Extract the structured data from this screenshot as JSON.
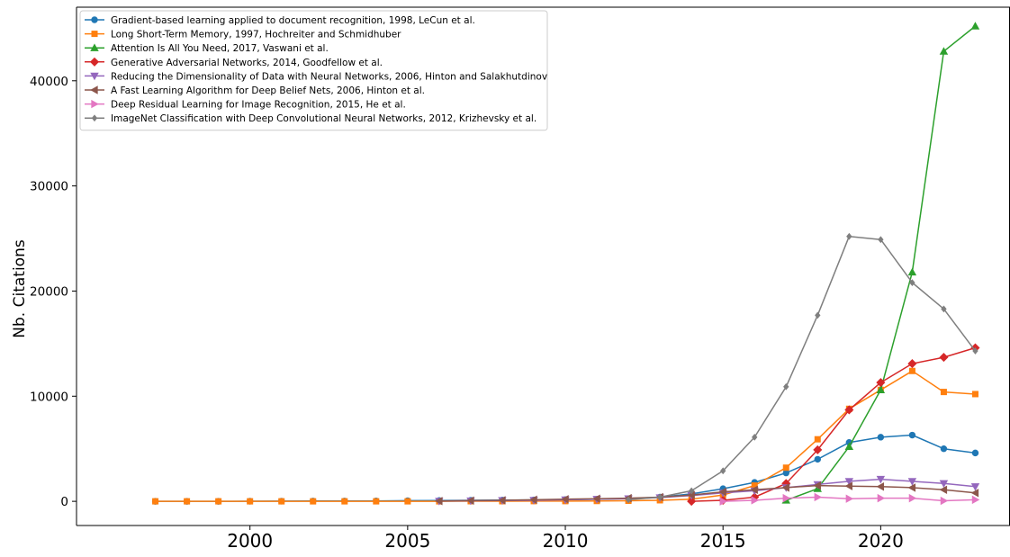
{
  "chart_data": {
    "type": "line",
    "title": "",
    "xlabel": "",
    "ylabel": "Nb. Citations",
    "xlim": [
      1994.5,
      2024.1
    ],
    "ylim": [
      -2300,
      47000
    ],
    "xticks": [
      2000,
      2005,
      2010,
      2015,
      2020
    ],
    "yticks": [
      0,
      10000,
      20000,
      30000,
      40000
    ],
    "grid": false,
    "legend_position": "top-left",
    "series": [
      {
        "name": "Gradient-based learning applied to document recognition, 1998, LeCun et al.",
        "color": "#1f77b4",
        "marker": "circle",
        "x": [
          1997,
          1998,
          1999,
          2000,
          2001,
          2002,
          2003,
          2004,
          2005,
          2006,
          2007,
          2008,
          2009,
          2010,
          2011,
          2012,
          2013,
          2014,
          2015,
          2016,
          2017,
          2018,
          2019,
          2020,
          2021,
          2022,
          2023
        ],
        "y": [
          0,
          0,
          0,
          10,
          20,
          30,
          30,
          40,
          60,
          80,
          100,
          120,
          130,
          160,
          200,
          260,
          400,
          700,
          1200,
          1800,
          2700,
          4000,
          5600,
          6100,
          6300,
          5000,
          4600
        ]
      },
      {
        "name": "Long Short-Term Memory, 1997, Hochreiter and Schmidhuber",
        "color": "#ff7f0e",
        "marker": "square",
        "x": [
          1997,
          1998,
          1999,
          2000,
          2001,
          2002,
          2003,
          2004,
          2005,
          2006,
          2007,
          2008,
          2009,
          2010,
          2011,
          2012,
          2013,
          2014,
          2015,
          2016,
          2017,
          2018,
          2019,
          2020,
          2021,
          2022,
          2023
        ],
        "y": [
          0,
          0,
          0,
          0,
          0,
          0,
          0,
          0,
          0,
          0,
          10,
          10,
          20,
          20,
          30,
          50,
          100,
          200,
          600,
          1500,
          3200,
          5900,
          8800,
          10600,
          12400,
          10400,
          10200
        ]
      },
      {
        "name": "Attention Is All You Need, 2017, Vaswani et al.",
        "color": "#2ca02c",
        "marker": "triangle-up",
        "x": [
          2017,
          2018,
          2019,
          2020,
          2021,
          2022,
          2023
        ],
        "y": [
          100,
          1200,
          5200,
          10600,
          21800,
          42800,
          45200
        ]
      },
      {
        "name": "Generative Adversarial Networks, 2014, Goodfellow et al.",
        "color": "#d62728",
        "marker": "diamond",
        "x": [
          2014,
          2015,
          2016,
          2017,
          2018,
          2019,
          2020,
          2021,
          2022,
          2023
        ],
        "y": [
          0,
          100,
          400,
          1700,
          4900,
          8700,
          11300,
          13100,
          13700,
          14600
        ]
      },
      {
        "name": "Reducing the Dimensionality of Data with Neural Networks, 2006, Hinton and Salakhutdinov",
        "color": "#9467bd",
        "marker": "triangle-down",
        "x": [
          2006,
          2007,
          2008,
          2009,
          2010,
          2011,
          2012,
          2013,
          2014,
          2015,
          2016,
          2017,
          2018,
          2019,
          2020,
          2021,
          2022,
          2023
        ],
        "y": [
          20,
          50,
          80,
          100,
          150,
          200,
          250,
          350,
          550,
          800,
          1000,
          1300,
          1600,
          1900,
          2100,
          1900,
          1700,
          1400
        ]
      },
      {
        "name": "A Fast Learning Algorithm for Deep Belief Nets, 2006, Hinton et al.",
        "color": "#8c564b",
        "marker": "triangle-left",
        "x": [
          2006,
          2007,
          2008,
          2009,
          2010,
          2011,
          2012,
          2013,
          2014,
          2015,
          2016,
          2017,
          2018,
          2019,
          2020,
          2021,
          2022,
          2023
        ],
        "y": [
          30,
          70,
          100,
          150,
          200,
          250,
          300,
          400,
          600,
          900,
          1100,
          1300,
          1500,
          1450,
          1400,
          1300,
          1100,
          800
        ]
      },
      {
        "name": "Deep Residual Learning for Image Recognition, 2015, He et al.",
        "color": "#e377c2",
        "marker": "triangle-right",
        "x": [
          2015,
          2016,
          2017,
          2018,
          2019,
          2020,
          2021,
          2022,
          2023
        ],
        "y": [
          0,
          100,
          300,
          400,
          250,
          300,
          300,
          50,
          150
        ]
      },
      {
        "name": "ImageNet Classification with Deep Convolutional Neural Networks, 2012, Krizhevsky et al.",
        "color": "#7f7f7f",
        "marker": "small-diamond",
        "x": [
          2012,
          2013,
          2014,
          2015,
          2016,
          2017,
          2018,
          2019,
          2020,
          2021,
          2022,
          2023
        ],
        "y": [
          150,
          400,
          1000,
          2900,
          6100,
          10900,
          17700,
          25200,
          24900,
          20800,
          18300,
          14300
        ]
      }
    ]
  }
}
